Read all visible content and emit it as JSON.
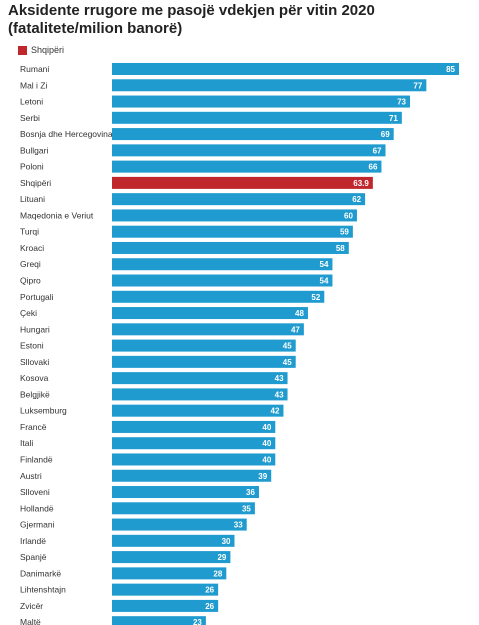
{
  "title_line1": "Aksidente rrugore me pasojë vdekjen për vitin 2020",
  "title_line2": "(fatalitete/milion banorë)",
  "colors": {
    "default": "#1f9bcf",
    "highlight": "#c0272d"
  },
  "chart_data": {
    "type": "bar",
    "orientation": "horizontal",
    "title": "Aksidente rrugore me pasojë vdekjen për vitin 2020 (fatalitete/milion banorë)",
    "legend": [
      {
        "name": "Shqipëri",
        "color": "#c0272d"
      }
    ],
    "legend_position": "top-left",
    "grid": false,
    "xlim": [
      0,
      85
    ],
    "highlight_category": "Shqipëri",
    "categories": [
      "Rumani",
      "Mal i Zi",
      "Letoni",
      "Serbi",
      "Bosnja dhe Hercegovina",
      "Bullgari",
      "Poloni",
      "Shqipëri",
      "Lituani",
      "Maqedonia e Veriut",
      "Turqi",
      "Kroaci",
      "Greqi",
      "Qipro",
      "Portugali",
      "Çeki",
      "Hungari",
      "Estoni",
      "Sllovaki",
      "Kosova",
      "Belgjikë",
      "Luksemburg",
      "Francë",
      "Itali",
      "Finlandë",
      "Austri",
      "Slloveni",
      "Hollandë",
      "Gjermani",
      "Irlandë",
      "Spanjë",
      "Danimarkë",
      "Lihtenshtajn",
      "Zvicër",
      "Maltë"
    ],
    "values": [
      85,
      77,
      73,
      71,
      69,
      67,
      66,
      63.9,
      62,
      60,
      59,
      58,
      54,
      54,
      52,
      48,
      47,
      45,
      45,
      43,
      43,
      42,
      40,
      40,
      40,
      39,
      36,
      35,
      33,
      30,
      29,
      28,
      26,
      26,
      23
    ],
    "value_labels": [
      "85",
      "77",
      "73",
      "71",
      "69",
      "67",
      "66",
      "63.9",
      "62",
      "60",
      "59",
      "58",
      "54",
      "54",
      "52",
      "48",
      "47",
      "45",
      "45",
      "43",
      "43",
      "42",
      "40",
      "40",
      "40",
      "39",
      "36",
      "35",
      "33",
      "30",
      "29",
      "28",
      "26",
      "26",
      "23"
    ]
  }
}
